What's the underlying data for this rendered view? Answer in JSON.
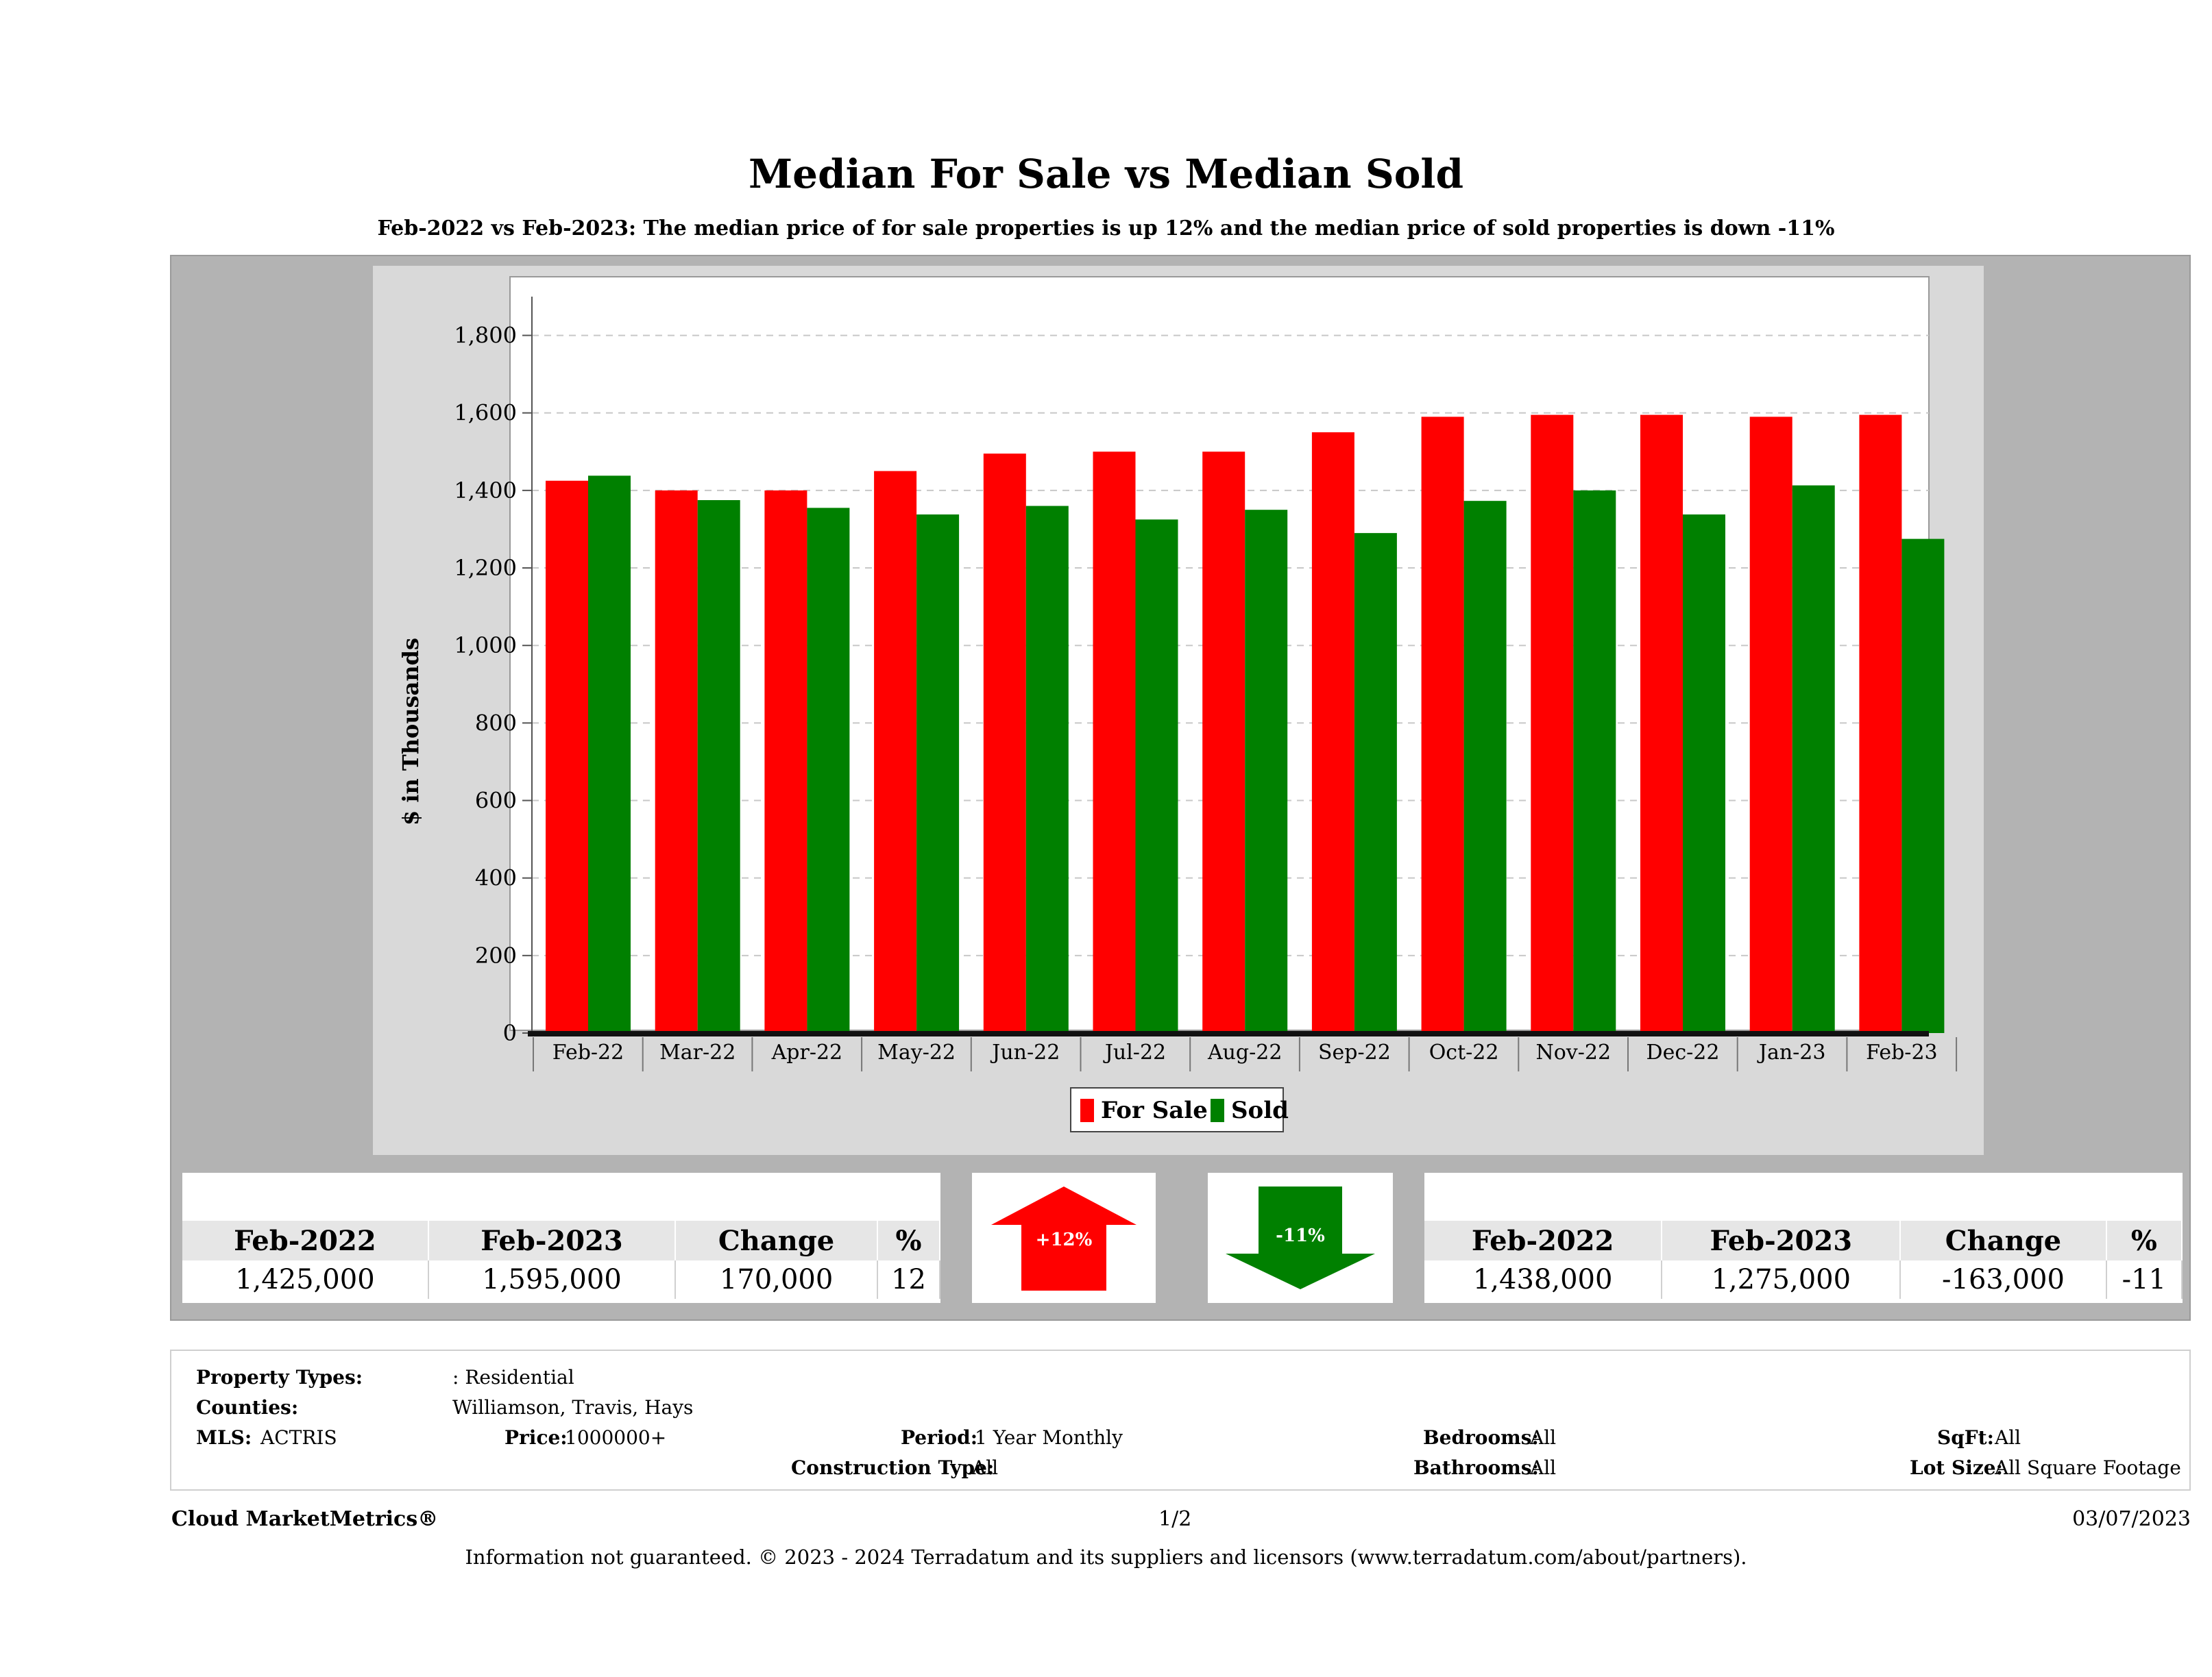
{
  "title": "Median For Sale vs Median Sold",
  "subtitle": "Feb-2022 vs Feb-2023: The median price of for sale properties is up 12% and the median price of sold properties is down -11%",
  "colors": {
    "for_sale": "#ff0000",
    "sold": "#008000"
  },
  "chart_data": {
    "type": "bar",
    "ylabel": "$ in Thousands",
    "ylim": [
      0,
      1900
    ],
    "yticks": [
      0,
      200,
      400,
      600,
      800,
      1000,
      1200,
      1400,
      1600,
      1800
    ],
    "ytick_labels": [
      "0",
      "200",
      "400",
      "600",
      "800",
      "1,000",
      "1,200",
      "1,400",
      "1,600",
      "1,800"
    ],
    "grid": true,
    "legend": "bottom-center",
    "categories": [
      "Feb-22",
      "Mar-22",
      "Apr-22",
      "May-22",
      "Jun-22",
      "Jul-22",
      "Aug-22",
      "Sep-22",
      "Oct-22",
      "Nov-22",
      "Dec-22",
      "Jan-23",
      "Feb-23"
    ],
    "series": [
      {
        "name": "For Sale",
        "values": [
          1425,
          1400,
          1400,
          1450,
          1495,
          1500,
          1500,
          1550,
          1590,
          1595,
          1595,
          1590,
          1595
        ]
      },
      {
        "name": "Sold",
        "values": [
          1438,
          1375,
          1355,
          1338,
          1360,
          1325,
          1350,
          1290,
          1373,
          1400,
          1338,
          1413,
          1275
        ]
      }
    ]
  },
  "for_sale_table": {
    "headers": [
      "Feb-2022",
      "Feb-2023",
      "Change",
      "%"
    ],
    "values": [
      "1,425,000",
      "1,595,000",
      "170,000",
      "12"
    ]
  },
  "sold_table": {
    "headers": [
      "Feb-2022",
      "Feb-2023",
      "Change",
      "%"
    ],
    "values": [
      "1,438,000",
      "1,275,000",
      "-163,000",
      "-11"
    ]
  },
  "arrows": {
    "up_label": "+12%",
    "down_label": "-11%"
  },
  "info": {
    "property_types_label": "Property Types:",
    "property_types_value": ": Residential",
    "counties_label": "Counties:",
    "counties_value": "Williamson, Travis, Hays",
    "mls_label": "MLS:",
    "mls_value": "ACTRIS",
    "price_label": "Price:",
    "price_value": "1000000+",
    "period_label": "Period:",
    "period_value": "1 Year Monthly",
    "construction_label": "Construction Type:",
    "construction_value": "All",
    "bedrooms_label": "Bedrooms:",
    "bedrooms_value": "All",
    "bathrooms_label": "Bathrooms:",
    "bathrooms_value": "All",
    "sqft_label": "SqFt:",
    "sqft_value": "All",
    "lot_label": "Lot Size:",
    "lot_value": "All Square Footage"
  },
  "footer": {
    "brand": "Cloud MarketMetrics®",
    "page": "1/2",
    "date": "03/07/2023",
    "disclaimer": "Information not guaranteed. © 2023 - 2024 Terradatum and its suppliers and licensors (www.terradatum.com/about/partners)."
  }
}
